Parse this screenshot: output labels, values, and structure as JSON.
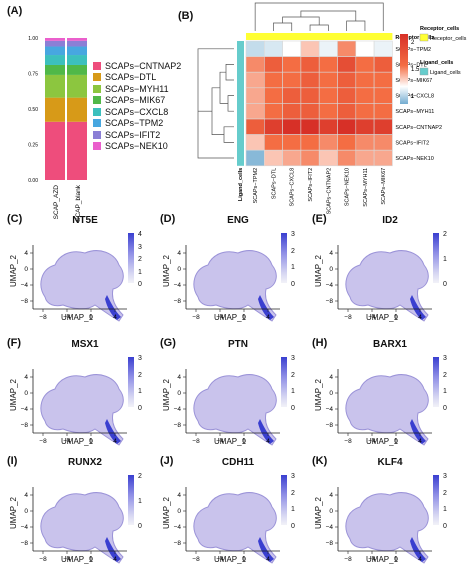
{
  "panels": {
    "a": "(A)",
    "b": "(B)",
    "c": "(C)",
    "d": "(D)",
    "e": "(E)",
    "f": "(F)",
    "g": "(G)",
    "h": "(H)",
    "i": "(I)",
    "j": "(J)",
    "k": "(K)"
  },
  "chart_data": [
    {
      "type": "bar",
      "stacked": true,
      "categories": [
        "SCAP_AZD",
        "SCAP_blank"
      ],
      "yticks": [
        "0.00",
        "0.25",
        "0.50",
        "0.75",
        "1.00"
      ],
      "ylim": [
        0,
        1
      ],
      "series": [
        {
          "name": "SCAPs−CNTNAP2",
          "color": "#ee4d7c",
          "values": [
            0.41,
            0.41
          ]
        },
        {
          "name": "SCAPs−DTL",
          "color": "#d79a18",
          "values": [
            0.17,
            0.17
          ]
        },
        {
          "name": "SCAPs−MYH11",
          "color": "#8cc63f",
          "values": [
            0.16,
            0.16
          ]
        },
        {
          "name": "SCAPs−MIK67",
          "color": "#50b848",
          "values": [
            0.07,
            0.07
          ]
        },
        {
          "name": "SCAPs−CXCL8",
          "color": "#3cc0bd",
          "values": [
            0.07,
            0.07
          ]
        },
        {
          "name": "SCAPs−TPM2",
          "color": "#47a7e0",
          "values": [
            0.06,
            0.06
          ]
        },
        {
          "name": "SCAPs−IFIT2",
          "color": "#8b7fd6",
          "values": [
            0.04,
            0.04
          ]
        },
        {
          "name": "SCAPs−NEK10",
          "color": "#ea5fcc",
          "values": [
            0.02,
            0.02
          ]
        }
      ]
    },
    {
      "type": "heatmap",
      "rows": [
        "SCAPs−TPM2",
        "SCAPs−DTL",
        "SCAPs−MIK67",
        "SCAPs−CXCL8",
        "SCAPs−MYH11",
        "SCAPs−CNTNAP2",
        "SCAPs−IFIT2",
        "SCAPs−NEK10"
      ],
      "columns": [
        "SCAPs−TPM2",
        "SCAPs−DTL",
        "SCAPs−CXCL8",
        "SCAPs−IFIT2",
        "SCAPs−CNTNAP2",
        "SCAPs−NEK10",
        "SCAPs−MYH11",
        "SCAPs−MIK67"
      ],
      "values": [
        [
          1.2,
          1.3,
          1.5,
          1.7,
          1.4,
          1.9,
          1.5,
          1.4
        ],
        [
          1.9,
          2.1,
          2.0,
          2.1,
          2.0,
          2.2,
          2.0,
          2.1
        ],
        [
          1.8,
          2.0,
          2.0,
          2.1,
          2.0,
          2.1,
          2.0,
          2.0
        ],
        [
          1.8,
          2.0,
          2.1,
          2.1,
          2.0,
          2.1,
          2.0,
          2.0
        ],
        [
          1.8,
          2.0,
          2.1,
          2.1,
          2.0,
          2.1,
          2.0,
          2.0
        ],
        [
          2.1,
          2.3,
          2.4,
          2.4,
          2.3,
          2.4,
          2.3,
          2.3
        ],
        [
          1.7,
          2.0,
          2.0,
          2.0,
          1.9,
          2.0,
          1.9,
          1.9
        ],
        [
          0.9,
          1.7,
          1.8,
          1.9,
          1.7,
          1.9,
          1.8,
          1.8
        ]
      ],
      "colorbar_ticks": [
        "2",
        "1.5",
        "1"
      ],
      "row_annotation_title": "Ligand_cells",
      "col_annotation_title": "Receptor_cells",
      "legend": [
        {
          "title": "Receptor_cells",
          "item": "Receptor_cells",
          "color": "#ffff33"
        },
        {
          "title": "Ligand_cells",
          "item": "Ligand_cells",
          "color": "#66cccc"
        }
      ]
    }
  ],
  "umap_panels": [
    {
      "label": "(C)",
      "gene": "NT5E",
      "ticks": [
        "4",
        "3",
        "2",
        "1",
        "0"
      ]
    },
    {
      "label": "(D)",
      "gene": "ENG",
      "ticks": [
        "3",
        "2",
        "1",
        "0"
      ]
    },
    {
      "label": "(E)",
      "gene": "ID2",
      "ticks": [
        "2",
        "1",
        "0"
      ]
    },
    {
      "label": "(F)",
      "gene": "MSX1",
      "ticks": [
        "3",
        "2",
        "1",
        "0"
      ]
    },
    {
      "label": "(G)",
      "gene": "PTN",
      "ticks": [
        "3",
        "2",
        "1",
        "0"
      ]
    },
    {
      "label": "(H)",
      "gene": "BARX1",
      "ticks": [
        "3",
        "2",
        "1",
        "0"
      ]
    },
    {
      "label": "(I)",
      "gene": "RUNX2",
      "ticks": [
        "2",
        "1",
        "0"
      ]
    },
    {
      "label": "(J)",
      "gene": "CDH11",
      "ticks": [
        "3",
        "2",
        "1",
        "0"
      ]
    },
    {
      "label": "(K)",
      "gene": "KLF4",
      "ticks": [
        "3",
        "2",
        "1",
        "0"
      ]
    }
  ],
  "umap_axes": {
    "xlabel": "UMAP_1",
    "ylabel": "UMAP_2",
    "xticks": [
      "−8",
      "−4",
      "0",
      "4"
    ],
    "yticks": [
      "4",
      "0",
      "−4",
      "−8"
    ]
  }
}
